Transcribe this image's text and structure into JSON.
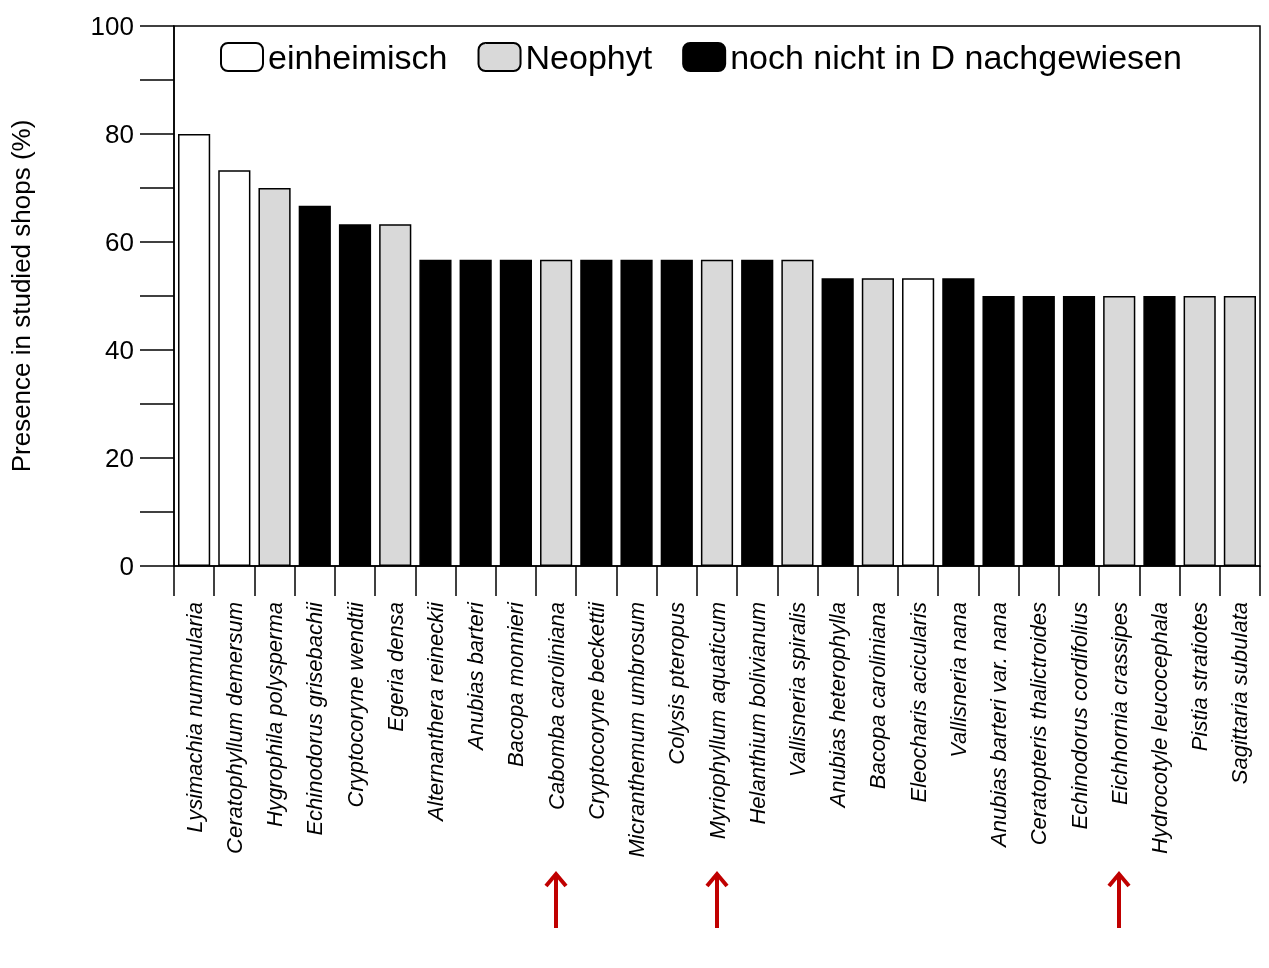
{
  "chart_data": {
    "type": "bar",
    "ylabel": "Presence in studied shops (%)",
    "categories": [
      "Lysimachia nummularia",
      "Ceratophyllum demersum",
      "Hygrophila polysperma",
      "Echinodorus grisebachii",
      "Cryptocoryne wendtii",
      "Egeria densa",
      "Alternanthera reineckii",
      "Anubias barteri",
      "Bacopa monnieri",
      "Cabomba caroliniana",
      "Cryptocoryne beckettii",
      "Micranthemum umbrosum",
      "Colysis pteropus",
      "Myriophyllum aquaticum",
      "Helanthium bolivianum",
      "Vallisneria spiralis",
      "Anubias heterophylla",
      "Bacopa caroliniana",
      "Eleocharis acicularis",
      "Vallisneria nana",
      "Anubias barteri var. nana",
      "Ceratopteris thalictroides",
      "Echinodorus cordifolius",
      "Eichhornia crassipes",
      "Hydrocotyle leucocephala",
      "Pistia stratiotes",
      "Sagittaria subulata"
    ],
    "series": [
      {
        "name": "einheimisch",
        "color": "#ffffff",
        "values": [
          80,
          73.3,
          null,
          null,
          null,
          null,
          null,
          null,
          null,
          null,
          null,
          null,
          null,
          null,
          null,
          null,
          null,
          null,
          53.3,
          null,
          null,
          null,
          null,
          null,
          null,
          null,
          null
        ]
      },
      {
        "name": "Neophyt",
        "color": "#d9d9d9",
        "values": [
          null,
          null,
          70,
          null,
          null,
          63.3,
          null,
          null,
          null,
          56.7,
          null,
          null,
          null,
          56.7,
          null,
          56.7,
          null,
          53.3,
          null,
          null,
          null,
          null,
          null,
          50,
          null,
          50,
          50
        ]
      },
      {
        "name": "noch nicht in D nachgewiesen",
        "color": "#000000",
        "values": [
          null,
          null,
          null,
          66.7,
          63.3,
          null,
          56.7,
          56.7,
          56.7,
          null,
          56.7,
          56.7,
          56.7,
          null,
          56.7,
          null,
          53.3,
          null,
          null,
          53.3,
          50,
          50,
          50,
          null,
          50,
          null,
          null
        ]
      }
    ],
    "ylim": [
      0,
      100
    ],
    "yticks": [
      0,
      20,
      40,
      60,
      80,
      100
    ],
    "grid": false,
    "legend": "top"
  }
}
